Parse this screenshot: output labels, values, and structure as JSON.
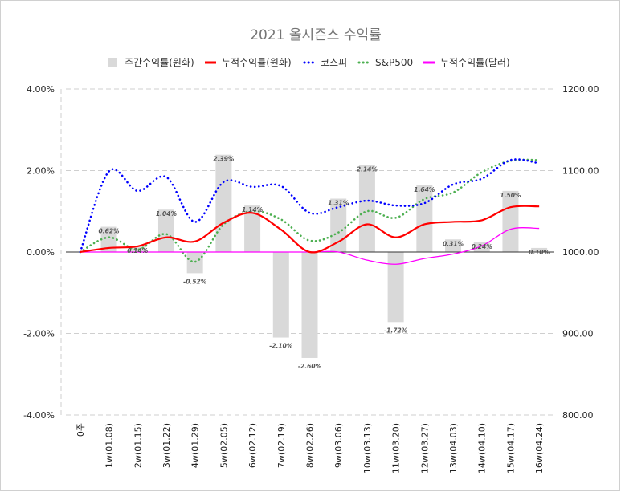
{
  "chart_data": {
    "type": "bar+line",
    "title": "2021 올시즌스 수익률",
    "categories": [
      "0주",
      "1w(01.08)",
      "2w(01.15)",
      "3w(01.22)",
      "4w(01.29)",
      "5w(02.05)",
      "6w(02.12)",
      "7w(02.19)",
      "8w(02.26)",
      "9w(03.06)",
      "10w(03.13)",
      "11w(03.20)",
      "12w(03.27)",
      "13w(04.03)",
      "14w(04.10)",
      "15w(04.17)",
      "16w(04.24)"
    ],
    "y_left": {
      "min": -4,
      "max": 4,
      "ticks": [
        "4.00%",
        "2.00%",
        "0.00%",
        "-2.00%",
        "-4.00%"
      ]
    },
    "y_right": {
      "min": 800,
      "max": 1200,
      "ticks": [
        "1200.00",
        "1100.00",
        "1000.00",
        "900.00",
        "800.00"
      ]
    },
    "grid": true,
    "legend_position": "top",
    "series": [
      {
        "name": "주간수익률(원화)",
        "kind": "bar",
        "axis": "left",
        "color": "#d9d9d9",
        "values": [
          null,
          0.62,
          0.14,
          1.04,
          -0.52,
          2.39,
          1.14,
          -2.1,
          -2.6,
          1.31,
          2.14,
          -1.72,
          1.64,
          0.31,
          0.24,
          1.5,
          0.1
        ],
        "labels": [
          "",
          "0.62%",
          "0.14%",
          "1.04%",
          "-0.52%",
          "2.39%",
          "1.14%",
          "-2.10%",
          "-2.60%",
          "1.31%",
          "2.14%",
          "-1.72%",
          "1.64%",
          "0.31%",
          "0.24%",
          "1.50%",
          "0.10%"
        ]
      },
      {
        "name": "누적수익률(원화)",
        "kind": "line",
        "axis": "left",
        "color": "#ff0000",
        "style": "solid",
        "values": [
          0,
          0.1,
          0.14,
          0.36,
          0.26,
          0.72,
          0.96,
          0.55,
          0.0,
          0.25,
          0.68,
          0.36,
          0.68,
          0.74,
          0.78,
          1.1,
          1.12
        ]
      },
      {
        "name": "코스피",
        "kind": "line",
        "axis": "right",
        "color": "#0000ff",
        "style": "dotted",
        "values": [
          1000,
          1099,
          1075,
          1092,
          1037,
          1086,
          1080,
          1081,
          1048,
          1055,
          1063,
          1057,
          1060,
          1083,
          1090,
          1113,
          1109
        ]
      },
      {
        "name": "S&P500",
        "kind": "line",
        "axis": "right",
        "color": "#4caf50",
        "style": "dotted",
        "values": [
          1000,
          1018,
          1003,
          1022,
          988,
          1034,
          1050,
          1040,
          1014,
          1024,
          1050,
          1042,
          1065,
          1073,
          1098,
          1112,
          1113
        ]
      },
      {
        "name": "누적수익률(달러)",
        "kind": "line",
        "axis": "left",
        "color": "#ff00ff",
        "style": "solid",
        "values": [
          0,
          0,
          0,
          0,
          0,
          0,
          0,
          0,
          0,
          0,
          -0.2,
          -0.3,
          -0.16,
          -0.05,
          0.15,
          0.56,
          0.58
        ]
      }
    ]
  }
}
